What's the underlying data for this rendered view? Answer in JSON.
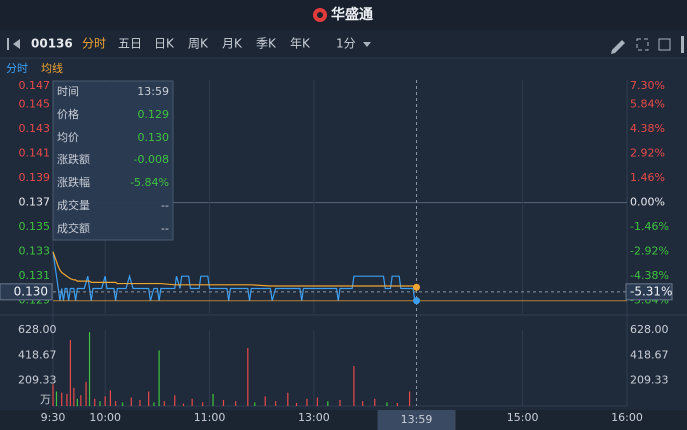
{
  "header": {
    "logo": "华盛通"
  },
  "toolbar": {
    "code": "00136",
    "tabs": [
      "分时",
      "五日",
      "日K",
      "周K",
      "月K",
      "季K",
      "年K"
    ],
    "active": 0,
    "interval": "1分"
  },
  "tooltip": {
    "rows": [
      {
        "label": "时间",
        "value": "13:59"
      },
      {
        "label": "价格",
        "value": "0.129"
      },
      {
        "label": "均价",
        "value": "0.130"
      },
      {
        "label": "涨跌额",
        "value": "-0.008"
      },
      {
        "label": "涨跌幅",
        "value": "-5.84%"
      },
      {
        "label": "成交量",
        "value": "--"
      },
      {
        "label": "成交额",
        "value": "--"
      }
    ]
  },
  "crosshair": {
    "x": {
      "value": 209,
      "label": "13:59"
    },
    "y": {
      "value": 0.13,
      "label": "0.130"
    },
    "y2": {
      "value": -5.31,
      "label": "-5.31%"
    }
  },
  "chart_data": [
    {
      "type": "line",
      "x": [
        0,
        1,
        2,
        3,
        4,
        5,
        6,
        7,
        8,
        9,
        10,
        12,
        13,
        14,
        18,
        20,
        21,
        22,
        23,
        28,
        30,
        31,
        35,
        36,
        37,
        42,
        44,
        46,
        55,
        56,
        58,
        60,
        61,
        62,
        70,
        71,
        73,
        74,
        78,
        79,
        84,
        85,
        89,
        90,
        100,
        101,
        102,
        112,
        113,
        114,
        125,
        126,
        128,
        142,
        143,
        144,
        150,
        163,
        164,
        165,
        172,
        173,
        190,
        191,
        194,
        195,
        199,
        200,
        207,
        208,
        209
      ],
      "xlim": [
        0,
        330
      ],
      "series": [
        {
          "name": "分时",
          "color": "#3d9ff0",
          "values": [
            0.133,
            0.132,
            0.131,
            0.13,
            0.129,
            0.13,
            0.129,
            0.13,
            0.13,
            0.129,
            0.13,
            0.13,
            0.129,
            0.13,
            0.13,
            0.131,
            0.13,
            0.129,
            0.13,
            0.13,
            0.131,
            0.13,
            0.13,
            0.129,
            0.13,
            0.13,
            0.131,
            0.13,
            0.13,
            0.129,
            0.13,
            0.13,
            0.129,
            0.13,
            0.13,
            0.131,
            0.13,
            0.131,
            0.131,
            0.13,
            0.13,
            0.131,
            0.131,
            0.13,
            0.13,
            0.129,
            0.13,
            0.13,
            0.129,
            0.13,
            0.13,
            0.129,
            0.13,
            0.13,
            0.129,
            0.13,
            0.13,
            0.13,
            0.129,
            0.13,
            0.13,
            0.131,
            0.131,
            0.13,
            0.13,
            0.131,
            0.131,
            0.13,
            0.13,
            0.129,
            0.129
          ]
        },
        {
          "name": "均线",
          "color": "#f0a431",
          "values": [
            0.133,
            0.1326,
            0.1322,
            0.1318,
            0.1315,
            0.1313,
            0.1312,
            0.1311,
            0.131,
            0.1309,
            0.1308,
            0.1307,
            0.1307,
            0.1306,
            0.1306,
            0.1306,
            0.1306,
            0.1305,
            0.1305,
            0.1305,
            0.1305,
            0.1305,
            0.1305,
            0.1305,
            0.1304,
            0.1304,
            0.1304,
            0.1304,
            0.1304,
            0.1304,
            0.1304,
            0.1304,
            0.1304,
            0.1304,
            0.1303,
            0.1303,
            0.1303,
            0.1303,
            0.1303,
            0.1303,
            0.1303,
            0.1303,
            0.1303,
            0.1303,
            0.1303,
            0.1303,
            0.1303,
            0.1303,
            0.1303,
            0.1303,
            0.1302,
            0.1302,
            0.1302,
            0.1302,
            0.1302,
            0.1302,
            0.1302,
            0.1302,
            0.1302,
            0.1302,
            0.1302,
            0.1302,
            0.1302,
            0.1302,
            0.1302,
            0.1302,
            0.1302,
            0.1302,
            0.1302,
            0.1301,
            0.1301
          ]
        }
      ],
      "ylim": [
        0.128,
        0.147
      ],
      "yticks": [
        {
          "value": 0.147,
          "label": "0.147"
        },
        {
          "value": 0.145,
          "label": "0.145"
        },
        {
          "value": 0.143,
          "label": "0.143"
        },
        {
          "value": 0.141,
          "label": "0.141"
        },
        {
          "value": 0.139,
          "label": "0.139"
        },
        {
          "value": 0.137,
          "label": "0.137"
        },
        {
          "value": 0.135,
          "label": "0.135"
        },
        {
          "value": 0.133,
          "label": "0.133"
        },
        {
          "value": 0.131,
          "label": "0.131"
        },
        {
          "value": 0.129,
          "label": "0.129"
        }
      ],
      "y2lim": [
        -6.57,
        7.3
      ],
      "y2ticks": [
        {
          "value": 7.3,
          "label": "7.30%"
        },
        {
          "value": 5.84,
          "label": "5.84%"
        },
        {
          "value": 4.38,
          "label": "4.38%"
        },
        {
          "value": 2.92,
          "label": "2.92%"
        },
        {
          "value": 1.46,
          "label": "1.46%"
        },
        {
          "value": 0,
          "label": "0.00%"
        },
        {
          "value": -1.46,
          "label": "-1.46%"
        },
        {
          "value": -2.92,
          "label": "-2.92%"
        },
        {
          "value": -4.38,
          "label": "-4.38%"
        },
        {
          "value": -5.84,
          "label": "-5.84%"
        }
      ]
    },
    {
      "type": "bar",
      "unit": "万",
      "x": [
        0,
        2,
        5,
        8,
        10,
        12,
        14,
        16,
        19,
        21,
        24,
        27,
        30,
        33,
        36,
        40,
        45,
        50,
        55,
        58,
        61,
        64,
        70,
        75,
        80,
        86,
        92,
        98,
        105,
        112,
        116,
        122,
        128,
        135,
        140,
        146,
        152,
        158,
        165,
        173,
        178,
        185,
        192,
        198,
        205
      ],
      "values": [
        180,
        120,
        110,
        100,
        545,
        150,
        60,
        90,
        200,
        610,
        60,
        40,
        80,
        130,
        40,
        30,
        70,
        50,
        120,
        30,
        460,
        40,
        90,
        20,
        60,
        30,
        100,
        50,
        40,
        480,
        30,
        80,
        40,
        110,
        25,
        60,
        70,
        40,
        50,
        330,
        40,
        60,
        30,
        25,
        120
      ],
      "bar_colors": [
        "#e84a4a",
        "#3fc23f",
        "#e84a4a",
        "#e84a4a",
        "#e84a4a",
        "#e84a4a",
        "#3fc23f",
        "#e84a4a",
        "#e84a4a",
        "#3fc23f",
        "#e84a4a",
        "#3fc23f",
        "#e84a4a",
        "#e84a4a",
        "#e84a4a",
        "#3fc23f",
        "#e84a4a",
        "#e84a4a",
        "#e84a4a",
        "#3fc23f",
        "#3fc23f",
        "#e84a4a",
        "#e84a4a",
        "#e84a4a",
        "#e84a4a",
        "#e84a4a",
        "#3fc23f",
        "#e84a4a",
        "#e84a4a",
        "#e84a4a",
        "#3fc23f",
        "#e84a4a",
        "#e84a4a",
        "#e84a4a",
        "#e84a4a",
        "#e84a4a",
        "#e84a4a",
        "#3fc23f",
        "#e84a4a",
        "#e84a4a",
        "#e84a4a",
        "#e84a4a",
        "#3fc23f",
        "#e84a4a",
        "#e84a4a"
      ],
      "ylim": [
        0,
        628
      ],
      "yticks": [
        {
          "value": 628,
          "label": "628.00"
        },
        {
          "value": 418.67,
          "label": "418.67"
        },
        {
          "value": 209.33,
          "label": "209.33"
        }
      ],
      "xlim": [
        0,
        330
      ],
      "xticks": [
        {
          "value": 0,
          "label": "9:30"
        },
        {
          "value": 30,
          "label": "10:00"
        },
        {
          "value": 90,
          "label": "11:00"
        },
        {
          "value": 150,
          "label": "13:00"
        },
        {
          "value": 270,
          "label": "15:00"
        },
        {
          "value": 330,
          "label": "16:00"
        }
      ]
    }
  ]
}
